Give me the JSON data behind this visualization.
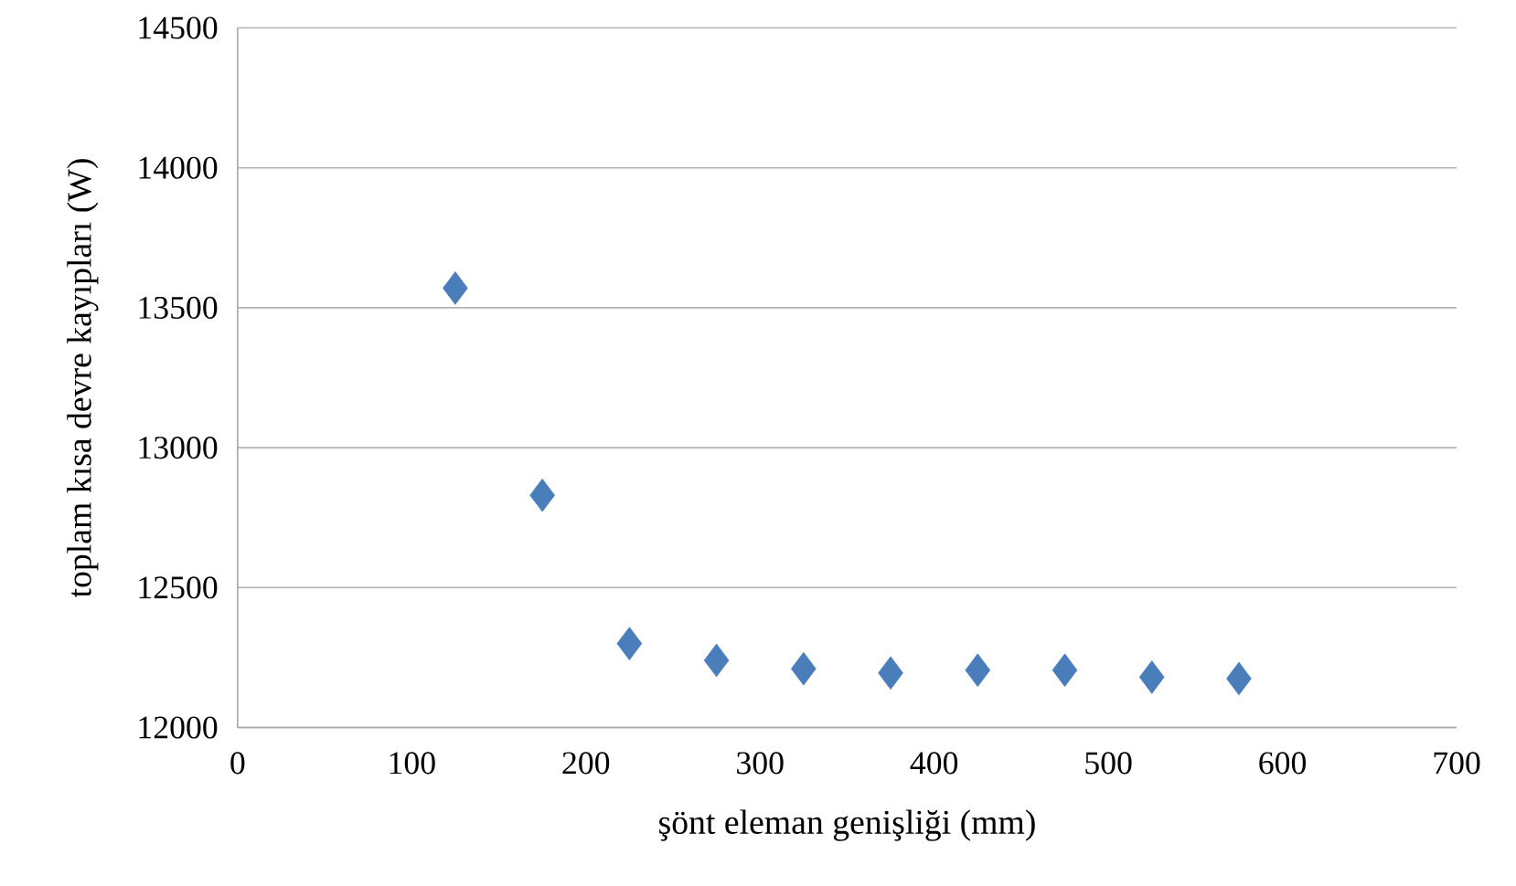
{
  "chart_data": {
    "type": "scatter",
    "xlabel": "şönt eleman genişliği (mm)",
    "ylabel": "toplam kısa devre kayıpları (W)",
    "x": [
      125,
      175,
      225,
      275,
      325,
      375,
      425,
      475,
      525,
      575
    ],
    "values": [
      13570,
      12830,
      12300,
      12240,
      12210,
      12195,
      12205,
      12205,
      12180,
      12175
    ],
    "color": "#4a7ebb",
    "marker": "diamond",
    "xlim": [
      0,
      700
    ],
    "xticks": [
      0,
      100,
      200,
      300,
      400,
      500,
      600,
      700
    ],
    "ylim": [
      12000,
      14500
    ],
    "yticks": [
      12000,
      12500,
      13000,
      13500,
      14000,
      14500
    ],
    "grid": "y"
  }
}
